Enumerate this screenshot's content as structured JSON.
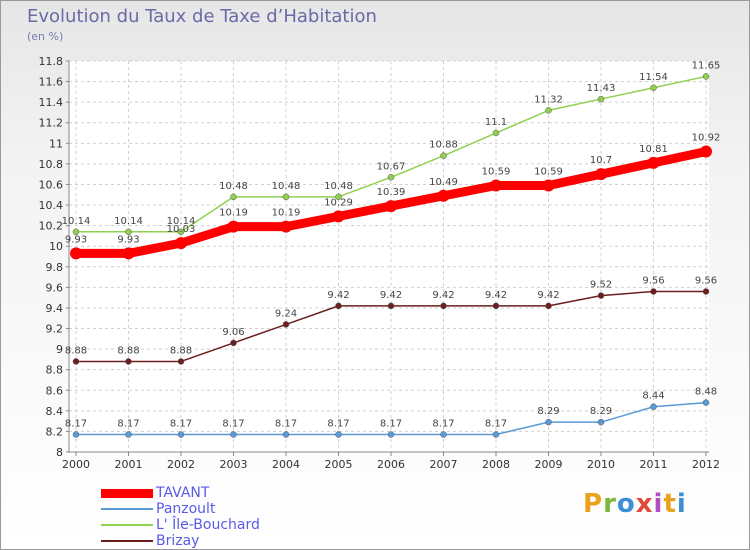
{
  "header": {
    "title": "Evolution du Taux de Taxe d’Habitation",
    "unit": "(en %)"
  },
  "logo": {
    "letters": [
      "P",
      "r",
      "o",
      "x",
      "i",
      "t",
      "i"
    ]
  },
  "chart_data": {
    "type": "line",
    "title": "Evolution du Taux de Taxe d’Habitation",
    "ylabel": "(en %)",
    "xlabel": "",
    "ylim": [
      8,
      11.8
    ],
    "y_ticks": [
      "8",
      "8.2",
      "8.4",
      "8.6",
      "8.8",
      "9",
      "9.2",
      "9.4",
      "9.6",
      "9.8",
      "10",
      "10.2",
      "10.4",
      "10.6",
      "10.8",
      "11",
      "11.2",
      "11.4",
      "11.6",
      "11.8"
    ],
    "categories": [
      "2000",
      "2001",
      "2002",
      "2003",
      "2004",
      "2005",
      "2006",
      "2007",
      "2008",
      "2009",
      "2010",
      "2011",
      "2012"
    ],
    "grid": true,
    "legend_position": "bottom-left",
    "series": [
      {
        "name": "TAVANT",
        "color": "#ff0000",
        "values": [
          9.93,
          9.93,
          10.03,
          10.19,
          10.19,
          10.29,
          10.39,
          10.49,
          10.59,
          10.59,
          10.7,
          10.81,
          10.92
        ],
        "labels": [
          "9.93",
          "9.93",
          "10.03",
          "10.19",
          "10.19",
          "10.29",
          "10.39",
          "10.49",
          "10.59",
          "10.59",
          "10.7",
          "10.81",
          "10.92"
        ]
      },
      {
        "name": "Panzoult",
        "color": "#5b9bd5",
        "values": [
          8.17,
          8.17,
          8.17,
          8.17,
          8.17,
          8.17,
          8.17,
          8.17,
          8.17,
          8.29,
          8.29,
          8.44,
          8.48
        ],
        "labels": [
          "8.17",
          "8.17",
          "8.17",
          "8.17",
          "8.17",
          "8.17",
          "8.17",
          "8.17",
          "8.17",
          "8.29",
          "8.29",
          "8.44",
          "8.48"
        ]
      },
      {
        "name": "L' Île-Bouchard",
        "color": "#8fd14f",
        "values": [
          10.14,
          10.14,
          10.14,
          10.48,
          10.48,
          10.48,
          10.67,
          10.88,
          11.1,
          11.32,
          11.43,
          11.54,
          11.65
        ],
        "labels": [
          "10.14",
          "10.14",
          "10.14",
          "10.48",
          "10.48",
          "10.48",
          "10.67",
          "10.88",
          "11.1",
          "11.32",
          "11.43",
          "11.54",
          "11.65"
        ]
      },
      {
        "name": "Brizay",
        "color": "#6b1f1f",
        "values": [
          8.88,
          8.88,
          8.88,
          9.06,
          9.24,
          9.42,
          9.42,
          9.42,
          9.42,
          9.42,
          9.52,
          9.56,
          9.56
        ],
        "labels": [
          "8.88",
          "8.88",
          "8.88",
          "9.06",
          "9.24",
          "9.42",
          "9.42",
          "9.42",
          "9.42",
          "9.42",
          "9.52",
          "9.56",
          "9.56"
        ]
      }
    ]
  }
}
